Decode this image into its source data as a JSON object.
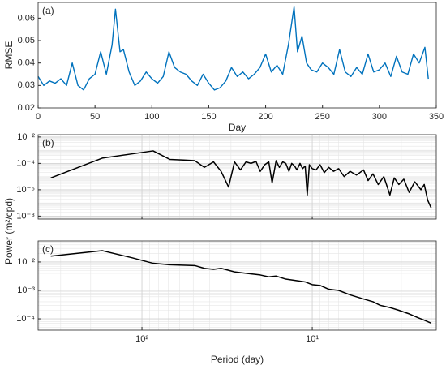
{
  "chart_data": [
    {
      "type": "line",
      "panel_label": "(a)",
      "xlabel": "Day",
      "ylabel": "RMSE",
      "color": "#0072bd",
      "x": [
        0,
        5,
        10,
        15,
        20,
        25,
        30,
        35,
        40,
        45,
        50,
        55,
        60,
        65,
        68,
        72,
        75,
        80,
        85,
        90,
        95,
        100,
        105,
        110,
        115,
        120,
        125,
        130,
        135,
        140,
        145,
        150,
        155,
        160,
        165,
        170,
        175,
        180,
        185,
        190,
        195,
        200,
        205,
        210,
        215,
        220,
        225,
        228,
        232,
        236,
        240,
        245,
        250,
        255,
        260,
        265,
        270,
        275,
        280,
        285,
        290,
        295,
        300,
        305,
        310,
        315,
        320,
        325,
        330,
        335,
        340,
        343
      ],
      "values": [
        0.034,
        0.03,
        0.032,
        0.031,
        0.033,
        0.03,
        0.04,
        0.03,
        0.028,
        0.033,
        0.035,
        0.045,
        0.035,
        0.048,
        0.064,
        0.045,
        0.046,
        0.036,
        0.03,
        0.032,
        0.036,
        0.033,
        0.031,
        0.034,
        0.045,
        0.038,
        0.036,
        0.035,
        0.032,
        0.03,
        0.035,
        0.031,
        0.028,
        0.029,
        0.032,
        0.038,
        0.034,
        0.036,
        0.033,
        0.035,
        0.038,
        0.044,
        0.036,
        0.039,
        0.035,
        0.048,
        0.065,
        0.045,
        0.052,
        0.04,
        0.037,
        0.036,
        0.04,
        0.038,
        0.035,
        0.046,
        0.036,
        0.034,
        0.038,
        0.035,
        0.044,
        0.036,
        0.037,
        0.04,
        0.034,
        0.043,
        0.036,
        0.035,
        0.044,
        0.04,
        0.047,
        0.033
      ],
      "xlim": [
        0,
        350
      ],
      "xticks": [
        0,
        50,
        100,
        150,
        200,
        250,
        300,
        350
      ],
      "ylim": [
        0.02,
        0.067
      ],
      "yticks": [
        0.02,
        0.03,
        0.04,
        0.05,
        0.06
      ]
    },
    {
      "type": "loglog",
      "panel_label": "(b)",
      "color": "#000000",
      "grid": true,
      "x": [
        343,
        171,
        86,
        68.6,
        57,
        49,
        43,
        38,
        34.3,
        31,
        28.6,
        26.4,
        24.5,
        22.9,
        21.4,
        20.2,
        19,
        18,
        17.2,
        16.3,
        15.6,
        14.9,
        14.3,
        13.7,
        13.2,
        12.7,
        12.3,
        11.8,
        11.4,
        11,
        10.7,
        10.4,
        10,
        9.5,
        9,
        8.5,
        8,
        7.5,
        7,
        6.5,
        6,
        5.5,
        5,
        4.7,
        4.4,
        4.1,
        3.8,
        3.5,
        3.3,
        3.1,
        2.9,
        2.7,
        2.5,
        2.3,
        2.2,
        2.1,
        2.0
      ],
      "values": [
        7.9e-06,
        0.00025,
        0.00089,
        0.0002,
        0.00018,
        0.00016,
        5e-05,
        0.00013,
        2.5e-05,
        1.6e-06,
        0.00013,
        3.2e-05,
        0.00013,
        0.0001,
        0.00014,
        2.5e-05,
        7.9e-05,
        0.00013,
        3.2e-06,
        0.00016,
        5e-05,
        0.00013,
        0.0001,
        2.5e-05,
        0.0001,
        6.3e-05,
        3.2e-05,
        0.0001,
        4e-05,
        6.3e-05,
        4e-07,
        7.9e-05,
        4e-05,
        3.2e-05,
        7.9e-05,
        2e-05,
        5e-05,
        2.5e-05,
        4e-05,
        1e-05,
        2.5e-05,
        1.3e-05,
        3.2e-05,
        5e-06,
        1.6e-05,
        2.5e-06,
        1e-05,
        4e-07,
        7.9e-06,
        2.5e-06,
        6.3e-06,
        6.3e-07,
        4e-06,
        1e-06,
        2.5e-06,
        1.6e-07,
        4e-08
      ],
      "xlim": [
        407,
        1.87
      ],
      "xticks": [
        100,
        10
      ],
      "ylim": [
        6e-09,
        0.015
      ],
      "yticks": [
        {
          "value": 1e-08,
          "label": "10⁻⁸"
        },
        {
          "value": 1e-06,
          "label": "10⁻⁶"
        },
        {
          "value": 0.0001,
          "label": "10⁻⁴"
        },
        {
          "value": 0.01,
          "label": "10⁻²"
        }
      ]
    },
    {
      "type": "loglog",
      "panel_label": "(c)",
      "xlabel": "Period (day)",
      "color": "#000000",
      "grid": true,
      "x": [
        343,
        171,
        114,
        86,
        68.6,
        49,
        43,
        38,
        34.3,
        28.6,
        24.5,
        20.2,
        18,
        16.3,
        14.3,
        12.3,
        11,
        10,
        9,
        8,
        7,
        6,
        5,
        4.4,
        4,
        3.5,
        3.1,
        2.7,
        2.4,
        2.2,
        2.0
      ],
      "values": [
        0.016,
        0.025,
        0.014,
        0.009,
        0.008,
        0.0075,
        0.006,
        0.0055,
        0.006,
        0.0045,
        0.004,
        0.0035,
        0.003,
        0.0032,
        0.0025,
        0.0022,
        0.002,
        0.0016,
        0.0015,
        0.0011,
        0.001,
        0.0007,
        0.0005,
        0.0004,
        0.0003,
        0.00025,
        0.0002,
        0.00015,
        0.00011,
        9e-05,
        7e-05
      ],
      "xlim": [
        407,
        1.87
      ],
      "xticks": [
        {
          "value": 100,
          "label": "10²"
        },
        {
          "value": 10,
          "label": "10¹"
        }
      ],
      "ylim": [
        4e-05,
        0.055
      ],
      "yticks": [
        {
          "value": 0.0001,
          "label": "10⁻⁴"
        },
        {
          "value": 0.001,
          "label": "10⁻³"
        },
        {
          "value": 0.01,
          "label": "10⁻²"
        }
      ]
    }
  ],
  "ylabel": "Power (m²/cpd)"
}
